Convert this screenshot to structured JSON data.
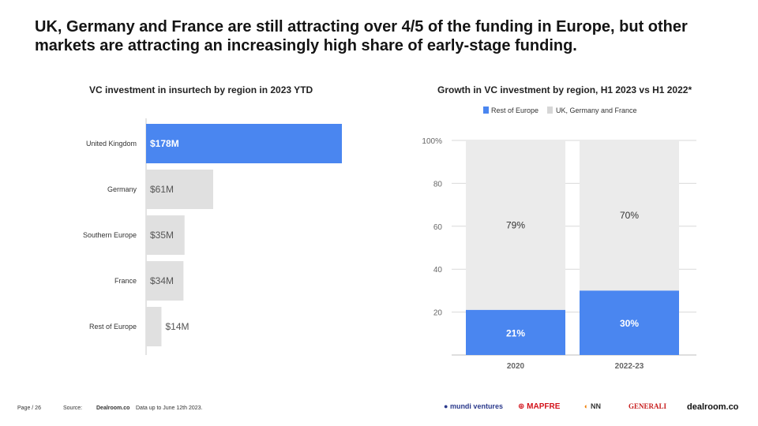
{
  "headline": "UK, Germany and France are still attracting over 4/5 of the funding in Europe, but other markets are attracting an increasingly high share of early-stage funding.",
  "colors": {
    "accent": "#4a86f0",
    "grey": "#e0e0e0",
    "grey_light": "#ebebeb"
  },
  "chart_data": [
    {
      "type": "bar",
      "orientation": "horizontal",
      "title": "VC investment in insurtech by region in 2023 YTD",
      "categories": [
        "United Kingdom",
        "Germany",
        "Southern Europe",
        "France",
        "Rest of Europe"
      ],
      "values": [
        178,
        61,
        35,
        34,
        14
      ],
      "labels": [
        "$178M",
        "$61M",
        "$35M",
        "$34M",
        "$14M"
      ],
      "highlight": "United Kingdom",
      "unit": "$M"
    },
    {
      "type": "bar",
      "stacked": true,
      "title": "Growth in VC investment by region, H1 2023 vs H1 2022*",
      "categories": [
        "2020",
        "2022-23"
      ],
      "series": [
        {
          "name": "Rest of Europe",
          "values": [
            21,
            30
          ],
          "labels": [
            "21%",
            "30%"
          ]
        },
        {
          "name": "UK, Germany and France",
          "values": [
            79,
            70
          ],
          "labels": [
            "79%",
            "70%"
          ]
        }
      ],
      "yticks": [
        "20",
        "40",
        "60",
        "80",
        "100%"
      ],
      "ylim": [
        0,
        100
      ],
      "legend": "top"
    }
  ],
  "footer": {
    "page": "Page / 26",
    "source_label": "Source:",
    "source": "Dealroom.co",
    "note": "Data up to June 12th 2023."
  },
  "logos": [
    "mundi ventures",
    "MAPFRE",
    "NN",
    "GENERALI",
    "dealroom.co"
  ]
}
